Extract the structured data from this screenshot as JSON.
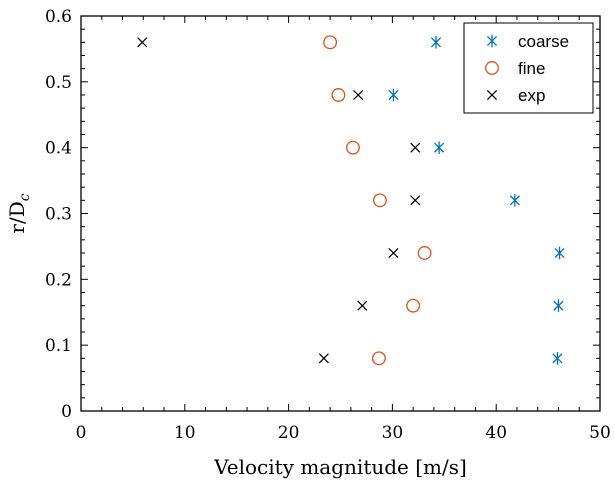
{
  "chart_data": {
    "type": "scatter",
    "xlabel": "Velocity magnitude [m/s]",
    "ylabel": "r/D",
    "ylabel_subscript": "c",
    "xlim": [
      0,
      50
    ],
    "ylim": [
      0,
      0.6
    ],
    "x_ticks": [
      0,
      10,
      20,
      30,
      40,
      50
    ],
    "y_ticks": [
      0,
      0.1,
      0.2,
      0.3,
      0.4,
      0.5,
      0.6
    ],
    "x_tick_labels": [
      "0",
      "10",
      "20",
      "30",
      "40",
      "50"
    ],
    "y_tick_labels": [
      "0",
      "0.1",
      "0.2",
      "0.3",
      "0.4",
      "0.5",
      "0.6"
    ],
    "grid": false,
    "legend_position": "top-right",
    "series": [
      {
        "name": "coarse",
        "marker": "asterisk",
        "color": "#0072BD",
        "points": [
          {
            "x": 34.2,
            "y": 0.56
          },
          {
            "x": 30.1,
            "y": 0.48
          },
          {
            "x": 34.5,
            "y": 0.4
          },
          {
            "x": 41.8,
            "y": 0.32
          },
          {
            "x": 46.1,
            "y": 0.24
          },
          {
            "x": 46.0,
            "y": 0.16
          },
          {
            "x": 45.9,
            "y": 0.08
          }
        ]
      },
      {
        "name": "fine",
        "marker": "circle",
        "color": "#D95319",
        "points": [
          {
            "x": 24.0,
            "y": 0.56
          },
          {
            "x": 24.8,
            "y": 0.48
          },
          {
            "x": 26.2,
            "y": 0.4
          },
          {
            "x": 28.8,
            "y": 0.32
          },
          {
            "x": 33.1,
            "y": 0.24
          },
          {
            "x": 32.0,
            "y": 0.16
          },
          {
            "x": 28.7,
            "y": 0.08
          }
        ]
      },
      {
        "name": "exp",
        "marker": "cross",
        "color": "#000000",
        "points": [
          {
            "x": 5.9,
            "y": 0.56
          },
          {
            "x": 26.7,
            "y": 0.48
          },
          {
            "x": 32.2,
            "y": 0.4
          },
          {
            "x": 32.2,
            "y": 0.32
          },
          {
            "x": 30.1,
            "y": 0.24
          },
          {
            "x": 27.1,
            "y": 0.16
          },
          {
            "x": 23.4,
            "y": 0.08
          }
        ]
      }
    ]
  }
}
